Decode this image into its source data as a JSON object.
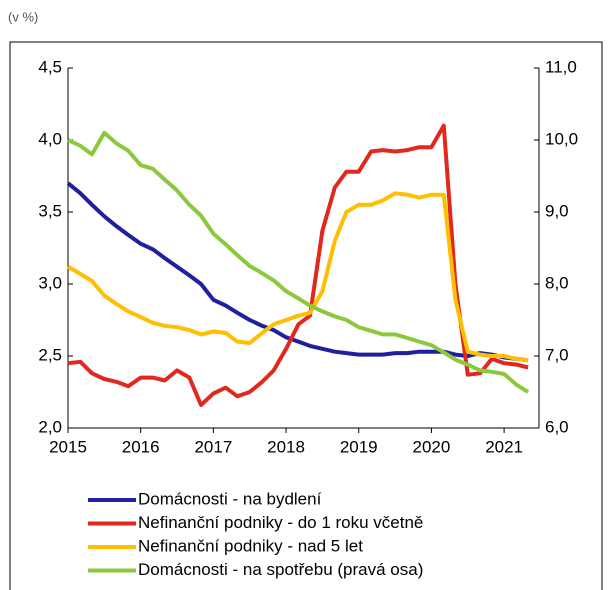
{
  "chart_data": {
    "type": "line",
    "unit_note": "(v %)",
    "x": [
      2015,
      2015.17,
      2015.33,
      2015.5,
      2015.67,
      2015.83,
      2016,
      2016.17,
      2016.33,
      2016.5,
      2016.67,
      2016.83,
      2017,
      2017.17,
      2017.33,
      2017.5,
      2017.67,
      2017.83,
      2018,
      2018.17,
      2018.33,
      2018.5,
      2018.67,
      2018.83,
      2019,
      2019.17,
      2019.33,
      2019.5,
      2019.67,
      2019.83,
      2020,
      2020.17,
      2020.33,
      2020.5,
      2020.67,
      2020.83,
      2021,
      2021.17,
      2021.33
    ],
    "series": [
      {
        "name": "Domácnosti - na bydlení",
        "color": "#1f1fa0",
        "axis": "y",
        "values": [
          3.7,
          3.63,
          3.55,
          3.47,
          3.4,
          3.34,
          3.28,
          3.24,
          3.18,
          3.12,
          3.06,
          3.0,
          2.89,
          2.85,
          2.8,
          2.75,
          2.71,
          2.68,
          2.63,
          2.6,
          2.57,
          2.55,
          2.53,
          2.52,
          2.51,
          2.51,
          2.51,
          2.52,
          2.52,
          2.53,
          2.53,
          2.53,
          2.51,
          2.5,
          2.52,
          2.51,
          2.49,
          2.48,
          2.47
        ]
      },
      {
        "name": "Nefinanční podniky - do 1 roku včetně",
        "color": "#e0281e",
        "axis": "y",
        "values": [
          2.45,
          2.46,
          2.38,
          2.34,
          2.32,
          2.29,
          2.35,
          2.35,
          2.33,
          2.4,
          2.35,
          2.16,
          2.24,
          2.28,
          2.22,
          2.25,
          2.32,
          2.4,
          2.55,
          2.72,
          2.78,
          3.37,
          3.67,
          3.78,
          3.78,
          3.92,
          3.93,
          3.92,
          3.93,
          3.95,
          3.95,
          4.1,
          3.0,
          2.37,
          2.38,
          2.48,
          2.45,
          2.44,
          2.42
        ]
      },
      {
        "name": "Nefinanční podniky - nad 5 let",
        "color": "#ffbe00",
        "axis": "y",
        "values": [
          3.12,
          3.07,
          3.02,
          2.92,
          2.86,
          2.81,
          2.77,
          2.73,
          2.71,
          2.7,
          2.68,
          2.65,
          2.67,
          2.66,
          2.6,
          2.59,
          2.66,
          2.72,
          2.75,
          2.78,
          2.8,
          2.95,
          3.3,
          3.5,
          3.55,
          3.55,
          3.58,
          3.63,
          3.62,
          3.6,
          3.62,
          3.62,
          2.89,
          2.53,
          2.51,
          2.5,
          2.5,
          2.48,
          2.47
        ]
      },
      {
        "name": "Domácnosti - na spotřebu (pravá osa)",
        "color": "#8cc83c",
        "axis": "y2",
        "values": [
          10.0,
          9.92,
          9.8,
          10.1,
          9.95,
          9.85,
          9.65,
          9.6,
          9.45,
          9.3,
          9.1,
          8.95,
          8.7,
          8.55,
          8.4,
          8.25,
          8.15,
          8.05,
          7.9,
          7.8,
          7.7,
          7.62,
          7.55,
          7.5,
          7.4,
          7.35,
          7.3,
          7.3,
          7.25,
          7.2,
          7.15,
          7.05,
          6.95,
          6.88,
          6.8,
          6.78,
          6.75,
          6.6,
          6.5
        ]
      }
    ],
    "xlim": [
      2015,
      2021.48
    ],
    "xticks": [
      2015,
      2016,
      2017,
      2018,
      2019,
      2020,
      2021
    ],
    "ylim": [
      2,
      4.5
    ],
    "yticks": [
      {
        "value": 2,
        "label": "2,0"
      },
      {
        "value": 2.5,
        "label": "2,5"
      },
      {
        "value": 3,
        "label": "3,0"
      },
      {
        "value": 3.5,
        "label": "3,5"
      },
      {
        "value": 4,
        "label": "4,0"
      },
      {
        "value": 4.5,
        "label": "4,5"
      }
    ],
    "y2lim": [
      6,
      11
    ],
    "y2ticks": [
      {
        "value": 6,
        "label": "6,0"
      },
      {
        "value": 7,
        "label": "7,0"
      },
      {
        "value": 8,
        "label": "8,0"
      },
      {
        "value": 9,
        "label": "9,0"
      },
      {
        "value": 10,
        "label": "10,0"
      },
      {
        "value": 11,
        "label": "11,0"
      }
    ],
    "grid": false,
    "legend": "bottom"
  }
}
